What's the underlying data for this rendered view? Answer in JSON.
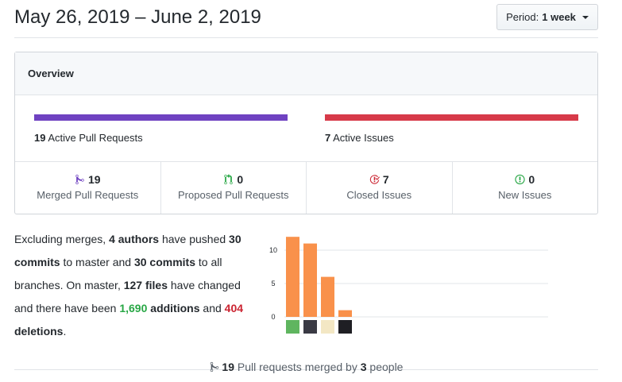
{
  "header": {
    "date_range": "May 26, 2019 – June 2, 2019",
    "period_label": "Period:",
    "period_value": "1 week"
  },
  "overview": {
    "title": "Overview",
    "pull_requests_bar": {
      "count": "19",
      "label": "Active Pull Requests",
      "color": "#6f42c1",
      "fill": 1.0
    },
    "issues_bar": {
      "count": "7",
      "label": "Active Issues",
      "color": "#d73a49",
      "fill": 1.0
    },
    "stats": [
      {
        "count": "19",
        "label": "Merged Pull Requests",
        "icon": "git-merge-icon",
        "color": "#6f42c1"
      },
      {
        "count": "0",
        "label": "Proposed Pull Requests",
        "icon": "git-pull-request-icon",
        "color": "#28a745"
      },
      {
        "count": "7",
        "label": "Closed Issues",
        "icon": "issue-closed-icon",
        "color": "#cb2431"
      },
      {
        "count": "0",
        "label": "New Issues",
        "icon": "issue-opened-icon",
        "color": "#28a745"
      }
    ]
  },
  "summary": {
    "t1": "Excluding merges, ",
    "authors": "4 authors",
    "t2": " have pushed ",
    "commits_master": "30 commits",
    "t3": " to master and ",
    "commits_all": "30 commits",
    "t4": " to all branches. On master, ",
    "files": "127 files",
    "t5": " have changed and there have been ",
    "additions_num": "1,690",
    "additions_word": " additions",
    "t6": " and ",
    "deletions_num": "404",
    "deletions_word": " deletions",
    "t7": "."
  },
  "chart_data": {
    "type": "bar",
    "categories": [
      "author-1",
      "author-2",
      "author-3",
      "author-4"
    ],
    "values": [
      12,
      11,
      6,
      1
    ],
    "yticks": [
      0,
      5,
      10
    ],
    "ylim": [
      0,
      12.5
    ],
    "color": "#f9914b",
    "grid": true
  },
  "footer": {
    "count": "19",
    "t1": " Pull requests merged by ",
    "people": "3",
    "t2": " people"
  }
}
